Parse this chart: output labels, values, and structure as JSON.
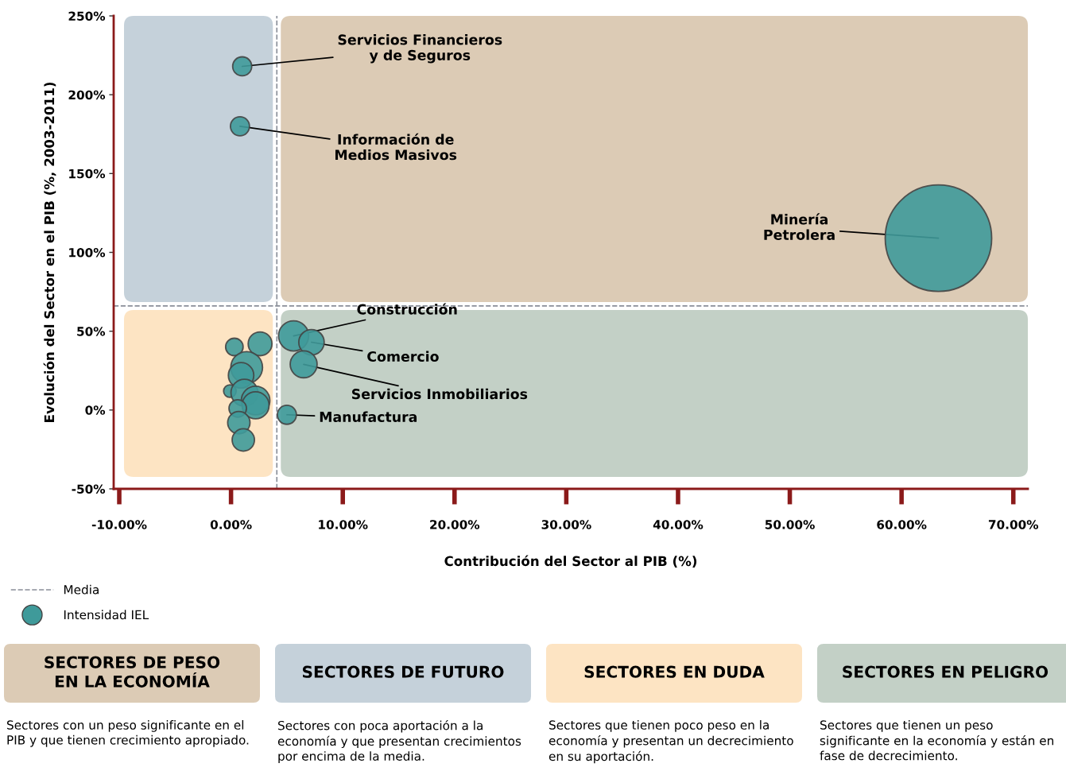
{
  "chart_data": {
    "type": "bubble",
    "xlabel": "Contribución del Sector al PIB (%)",
    "ylabel": "Evolución del Sector en el PIB (%, 2003-2011)",
    "xlim": [
      -10.5,
      71.3
    ],
    "ylim": [
      -50,
      250
    ],
    "xticks": [
      {
        "value": -10,
        "label": "-10.00%"
      },
      {
        "value": 0,
        "label": "0.00%"
      },
      {
        "value": 10,
        "label": "10.00%"
      },
      {
        "value": 20,
        "label": "20.00%"
      },
      {
        "value": 30,
        "label": "30.00%"
      },
      {
        "value": 40,
        "label": "40.00%"
      },
      {
        "value": 50,
        "label": "50.00%"
      },
      {
        "value": 60,
        "label": "60.00%"
      },
      {
        "value": 70,
        "label": "70.00%"
      }
    ],
    "yticks": [
      {
        "value": -50,
        "label": "-50%"
      },
      {
        "value": 0,
        "label": "0%"
      },
      {
        "value": 50,
        "label": "50%"
      },
      {
        "value": 100,
        "label": "100%"
      },
      {
        "value": 150,
        "label": "150%"
      },
      {
        "value": 200,
        "label": "200%"
      },
      {
        "value": 250,
        "label": "250%"
      }
    ],
    "series": [
      {
        "name": "Intensidad IEL",
        "color": "#3f9a9a",
        "x": [
          1.0,
          0.8,
          63.3,
          5.6,
          7.2,
          6.5,
          5.0,
          0.3,
          2.6,
          1.4,
          0.9,
          -0.1,
          1.2,
          2.2,
          2.2,
          0.6,
          0.7,
          1.1
        ],
        "values": [
          218,
          180,
          109,
          47,
          43,
          29,
          -3,
          40,
          42,
          27,
          22,
          12,
          11,
          6,
          3,
          1,
          -8,
          -19
        ],
        "sizes": [
          0.032,
          0.032,
          1,
          0.08,
          0.057,
          0.064,
          0.032,
          0.027,
          0.05,
          0.089,
          0.057,
          0.014,
          0.064,
          0.072,
          0.064,
          0.027,
          0.044,
          0.044
        ]
      }
    ],
    "ref_lines": [
      {
        "axis": "x",
        "value": 4.1,
        "label": "Media",
        "color": "#8a8f99",
        "line_style": "dashed"
      },
      {
        "axis": "y",
        "value": 66,
        "color": "#8a8f99",
        "line_style": "dashed"
      }
    ],
    "legend": "bottom left",
    "annotations": [
      {
        "text": "Servicios Financieros\ny de Seguros",
        "x": 1.0,
        "y": 218
      },
      {
        "text": "Información de\nMedios Masivos",
        "x": 0.8,
        "y": 180
      },
      {
        "text": "Minería\nPetrolera",
        "x": 63.3,
        "y": 109
      },
      {
        "text": "Construcción",
        "x": 5.6,
        "y": 47
      },
      {
        "text": "Comercio",
        "x": 7.2,
        "y": 43
      },
      {
        "text": "Servicios Inmobiliarios",
        "x": 6.5,
        "y": 29
      },
      {
        "text": "Manufactura",
        "x": 5.0,
        "y": -3
      },
      "SECTORES DE PESO\nEN LA ECONOMÍA",
      "Sectores con un peso significante en el\nPIB y que tienen crecimiento apropiado.",
      "SECTORES DE FUTURO",
      "Sectores con poca aportación a la\neconomía y que presentan crecimientos\npor encima de la media.",
      "SECTORES EN DUDA",
      "Sectores que tienen poco peso en la\neconomía y presentan un decrecimiento\nen su aportación.",
      "SECTORES EN PELIGRO",
      "Sectores que tienen un peso\nsignificante en la economía y están en\nfase de decrecimiento."
    ]
  }
}
